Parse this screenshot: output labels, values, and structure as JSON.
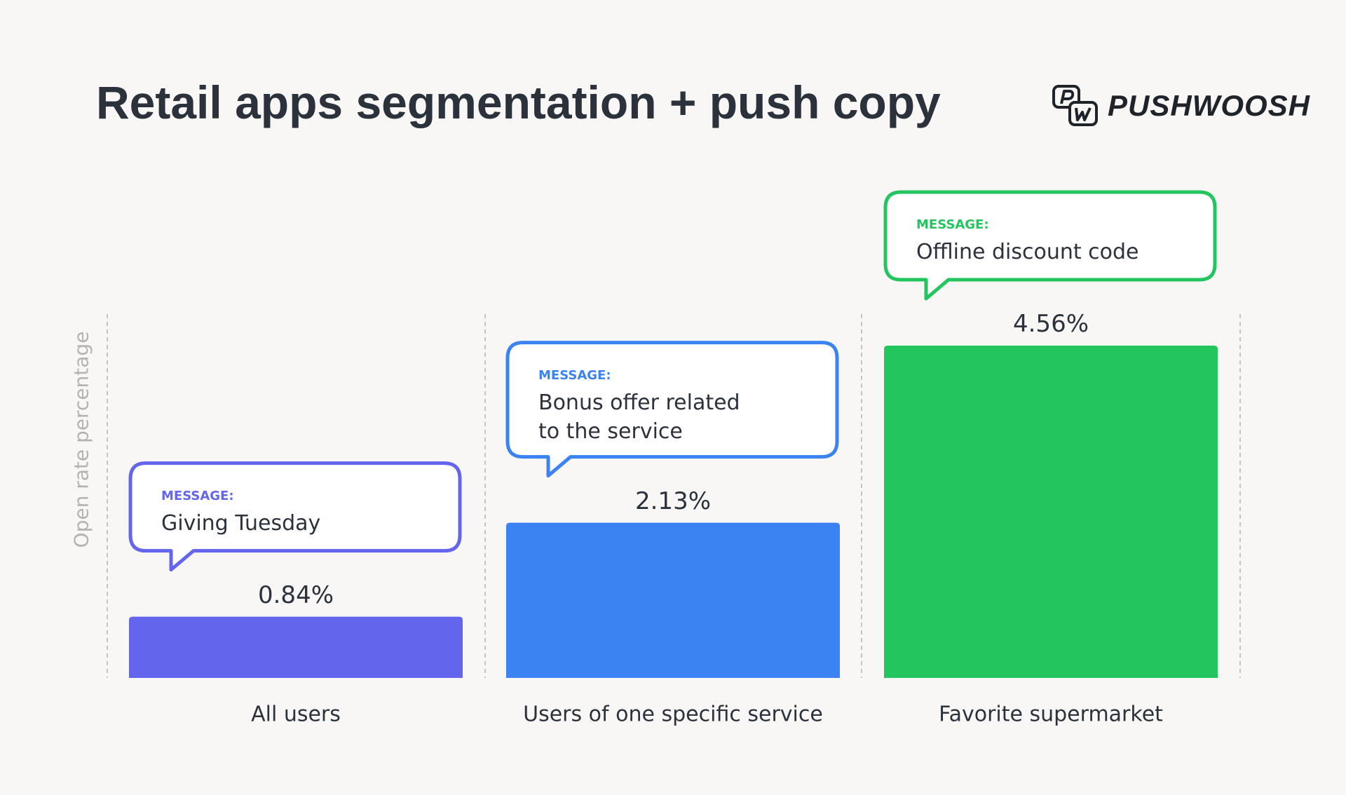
{
  "title": "Retail apps segmentation + push copy",
  "logo": {
    "text": "PUSHWOOSH",
    "mark": "PW"
  },
  "chart_data": {
    "type": "bar",
    "title": "Retail apps segmentation + push copy",
    "ylabel": "Open rate percentage",
    "xlabel": "",
    "categories": [
      "All users",
      "Users of one specific service",
      "Favorite supermarket"
    ],
    "values": [
      0.84,
      2.13,
      4.56
    ],
    "value_labels": [
      "0.84%",
      "2.13%",
      "4.56%"
    ],
    "colors": [
      "#6366ec",
      "#3b82f2",
      "#22c55e"
    ],
    "annotations": [
      {
        "label": "MESSAGE:",
        "text": [
          "Giving Tuesday"
        ]
      },
      {
        "label": "MESSAGE:",
        "text": [
          "Bonus offer related",
          "to the service"
        ]
      },
      {
        "label": "MESSAGE:",
        "text": [
          "Offline discount code"
        ]
      }
    ],
    "ylim": [
      0,
      4.56
    ],
    "grid": false,
    "separators": "dashed vertical"
  }
}
